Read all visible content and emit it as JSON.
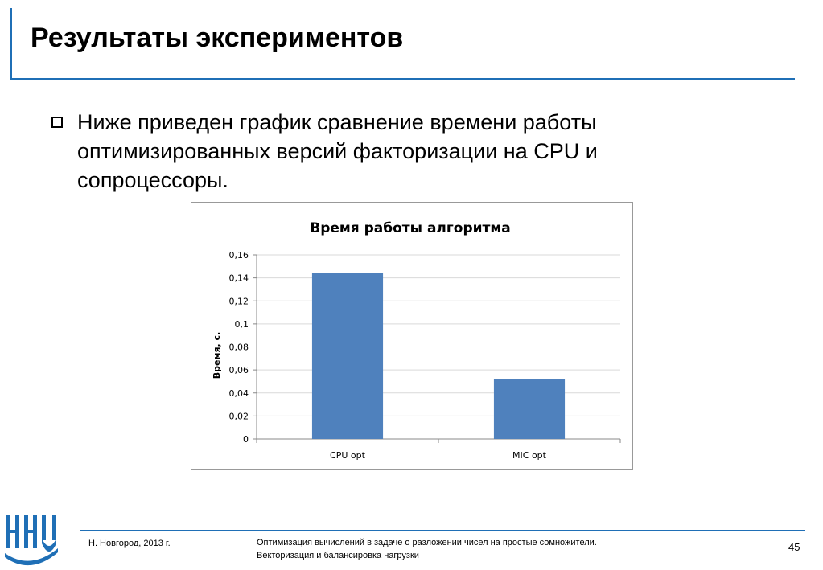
{
  "slide": {
    "title": "Результаты экспериментов",
    "bullet": "Ниже приведен график сравнение времени работы оптимизированных версий факторизации на CPU и сопроцессоры."
  },
  "colors": {
    "accent": "#1f6fb6",
    "bar": "#4f81bd",
    "grid": "#d9d9d9"
  },
  "chart_data": {
    "type": "bar",
    "title": "Время работы алгоритма",
    "xlabel": "",
    "ylabel": "Время, с.",
    "categories": [
      "CPU opt",
      "MIC opt"
    ],
    "values": [
      0.144,
      0.052
    ],
    "ylim": [
      0,
      0.16
    ],
    "yticks": [
      "0",
      "0,02",
      "0,04",
      "0,06",
      "0,08",
      "0,1",
      "0,12",
      "0,14",
      "0,16"
    ],
    "grid": true,
    "legend": "none"
  },
  "footer": {
    "location": "Н. Новгород, 2013 г.",
    "topic": "Оптимизация вычислений в задаче о разложении чисел на простые сомножители. Векторизация и балансировка нагрузки",
    "page": "45"
  },
  "logo": {
    "icon": "university-logo-icon"
  }
}
